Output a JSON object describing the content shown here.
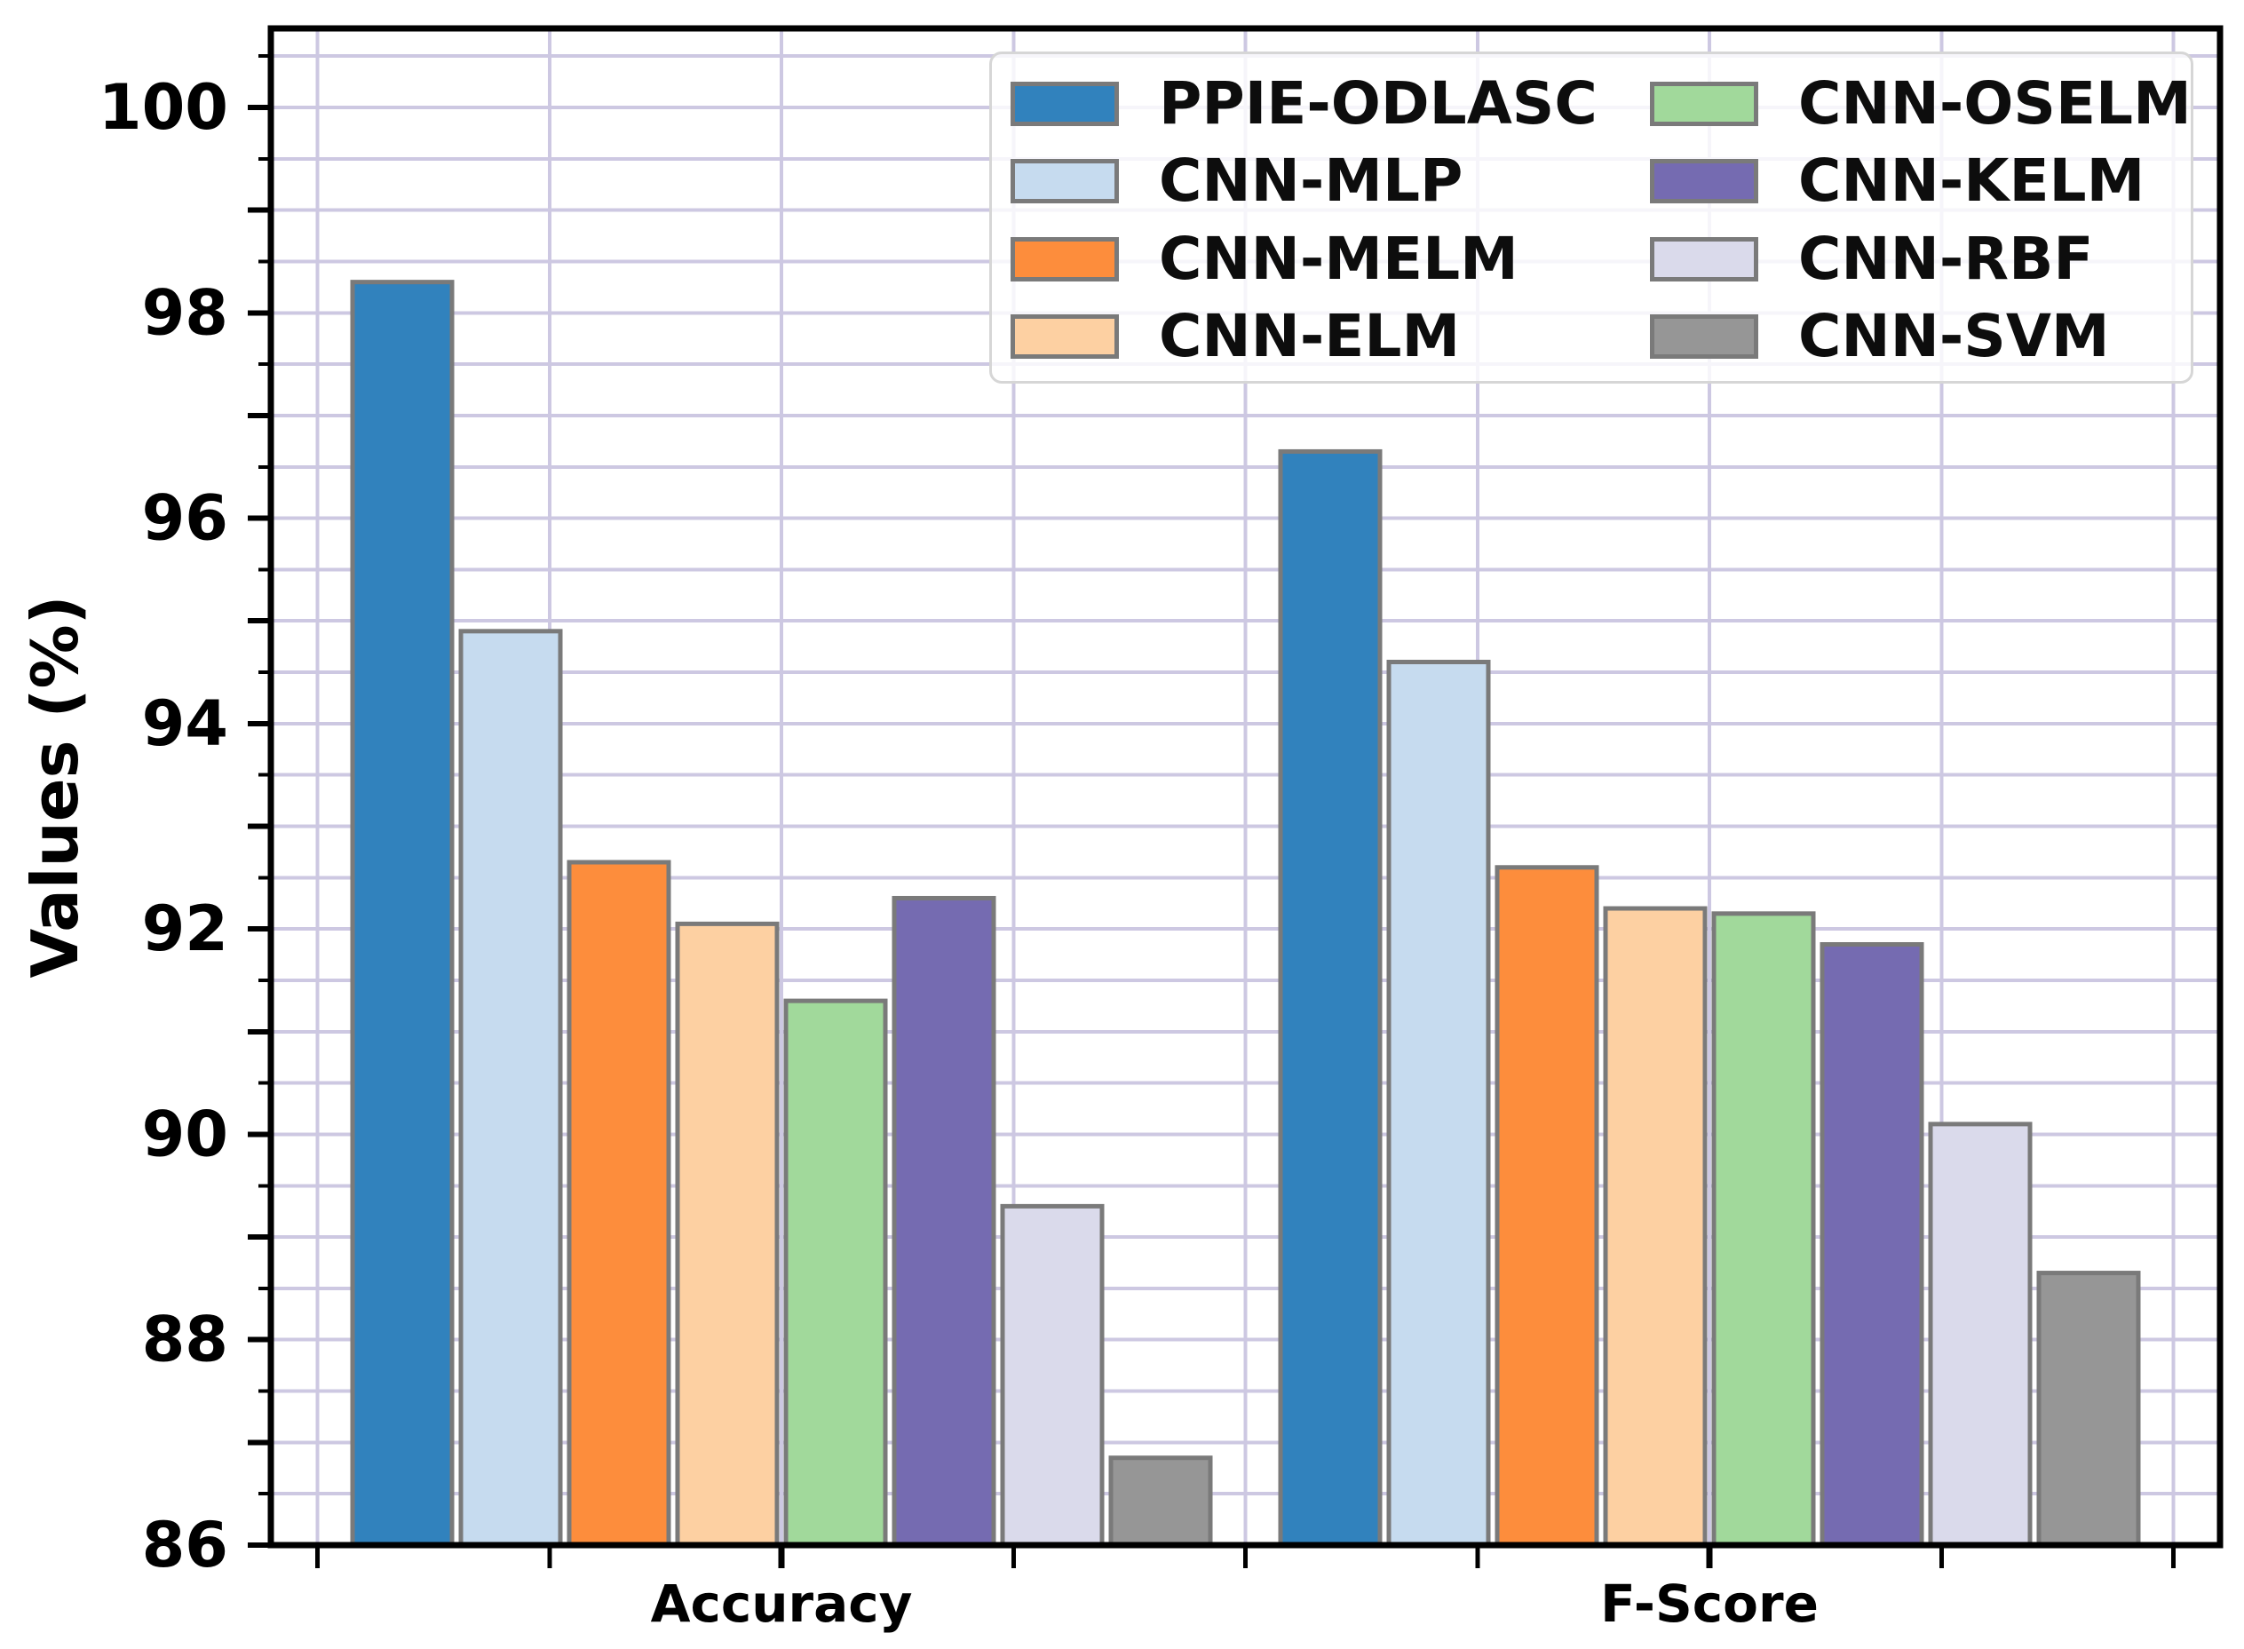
{
  "chart_data": {
    "type": "bar",
    "title": "",
    "ylabel": "Values (%)",
    "xlabel": "",
    "categories": [
      "Accuracy",
      "F-Score"
    ],
    "series": [
      {
        "name": "PPIE-ODLASC",
        "color": "#3182bd",
        "values": [
          98.3,
          96.65
        ]
      },
      {
        "name": "CNN-MLP",
        "color": "#c6dbef",
        "values": [
          94.9,
          94.6
        ]
      },
      {
        "name": "CNN-MELM",
        "color": "#fd8d3c",
        "values": [
          92.65,
          92.6
        ]
      },
      {
        "name": "CNN-ELM",
        "color": "#fdd0a2",
        "values": [
          92.05,
          92.2
        ]
      },
      {
        "name": "CNN-OSELM",
        "color": "#a1d99b",
        "values": [
          91.3,
          92.15
        ]
      },
      {
        "name": "CNN-KELM",
        "color": "#756bb1",
        "values": [
          92.3,
          91.85
        ]
      },
      {
        "name": "CNN-RBF",
        "color": "#dadaeb",
        "values": [
          89.3,
          90.1
        ]
      },
      {
        "name": "CNN-SVM",
        "color": "#969696",
        "values": [
          86.85,
          88.65
        ]
      }
    ],
    "y_ticks": [
      86,
      88,
      90,
      92,
      94,
      96,
      98,
      100
    ],
    "ylim": [
      86,
      100.77
    ],
    "y_minor_step": 0.5,
    "grid": true,
    "grid_color": "#cdc8e2",
    "axis_color": "#000000",
    "bar_edge_color": "#7a7a7a",
    "legend_position": "upper right",
    "legend_columns": 2
  }
}
